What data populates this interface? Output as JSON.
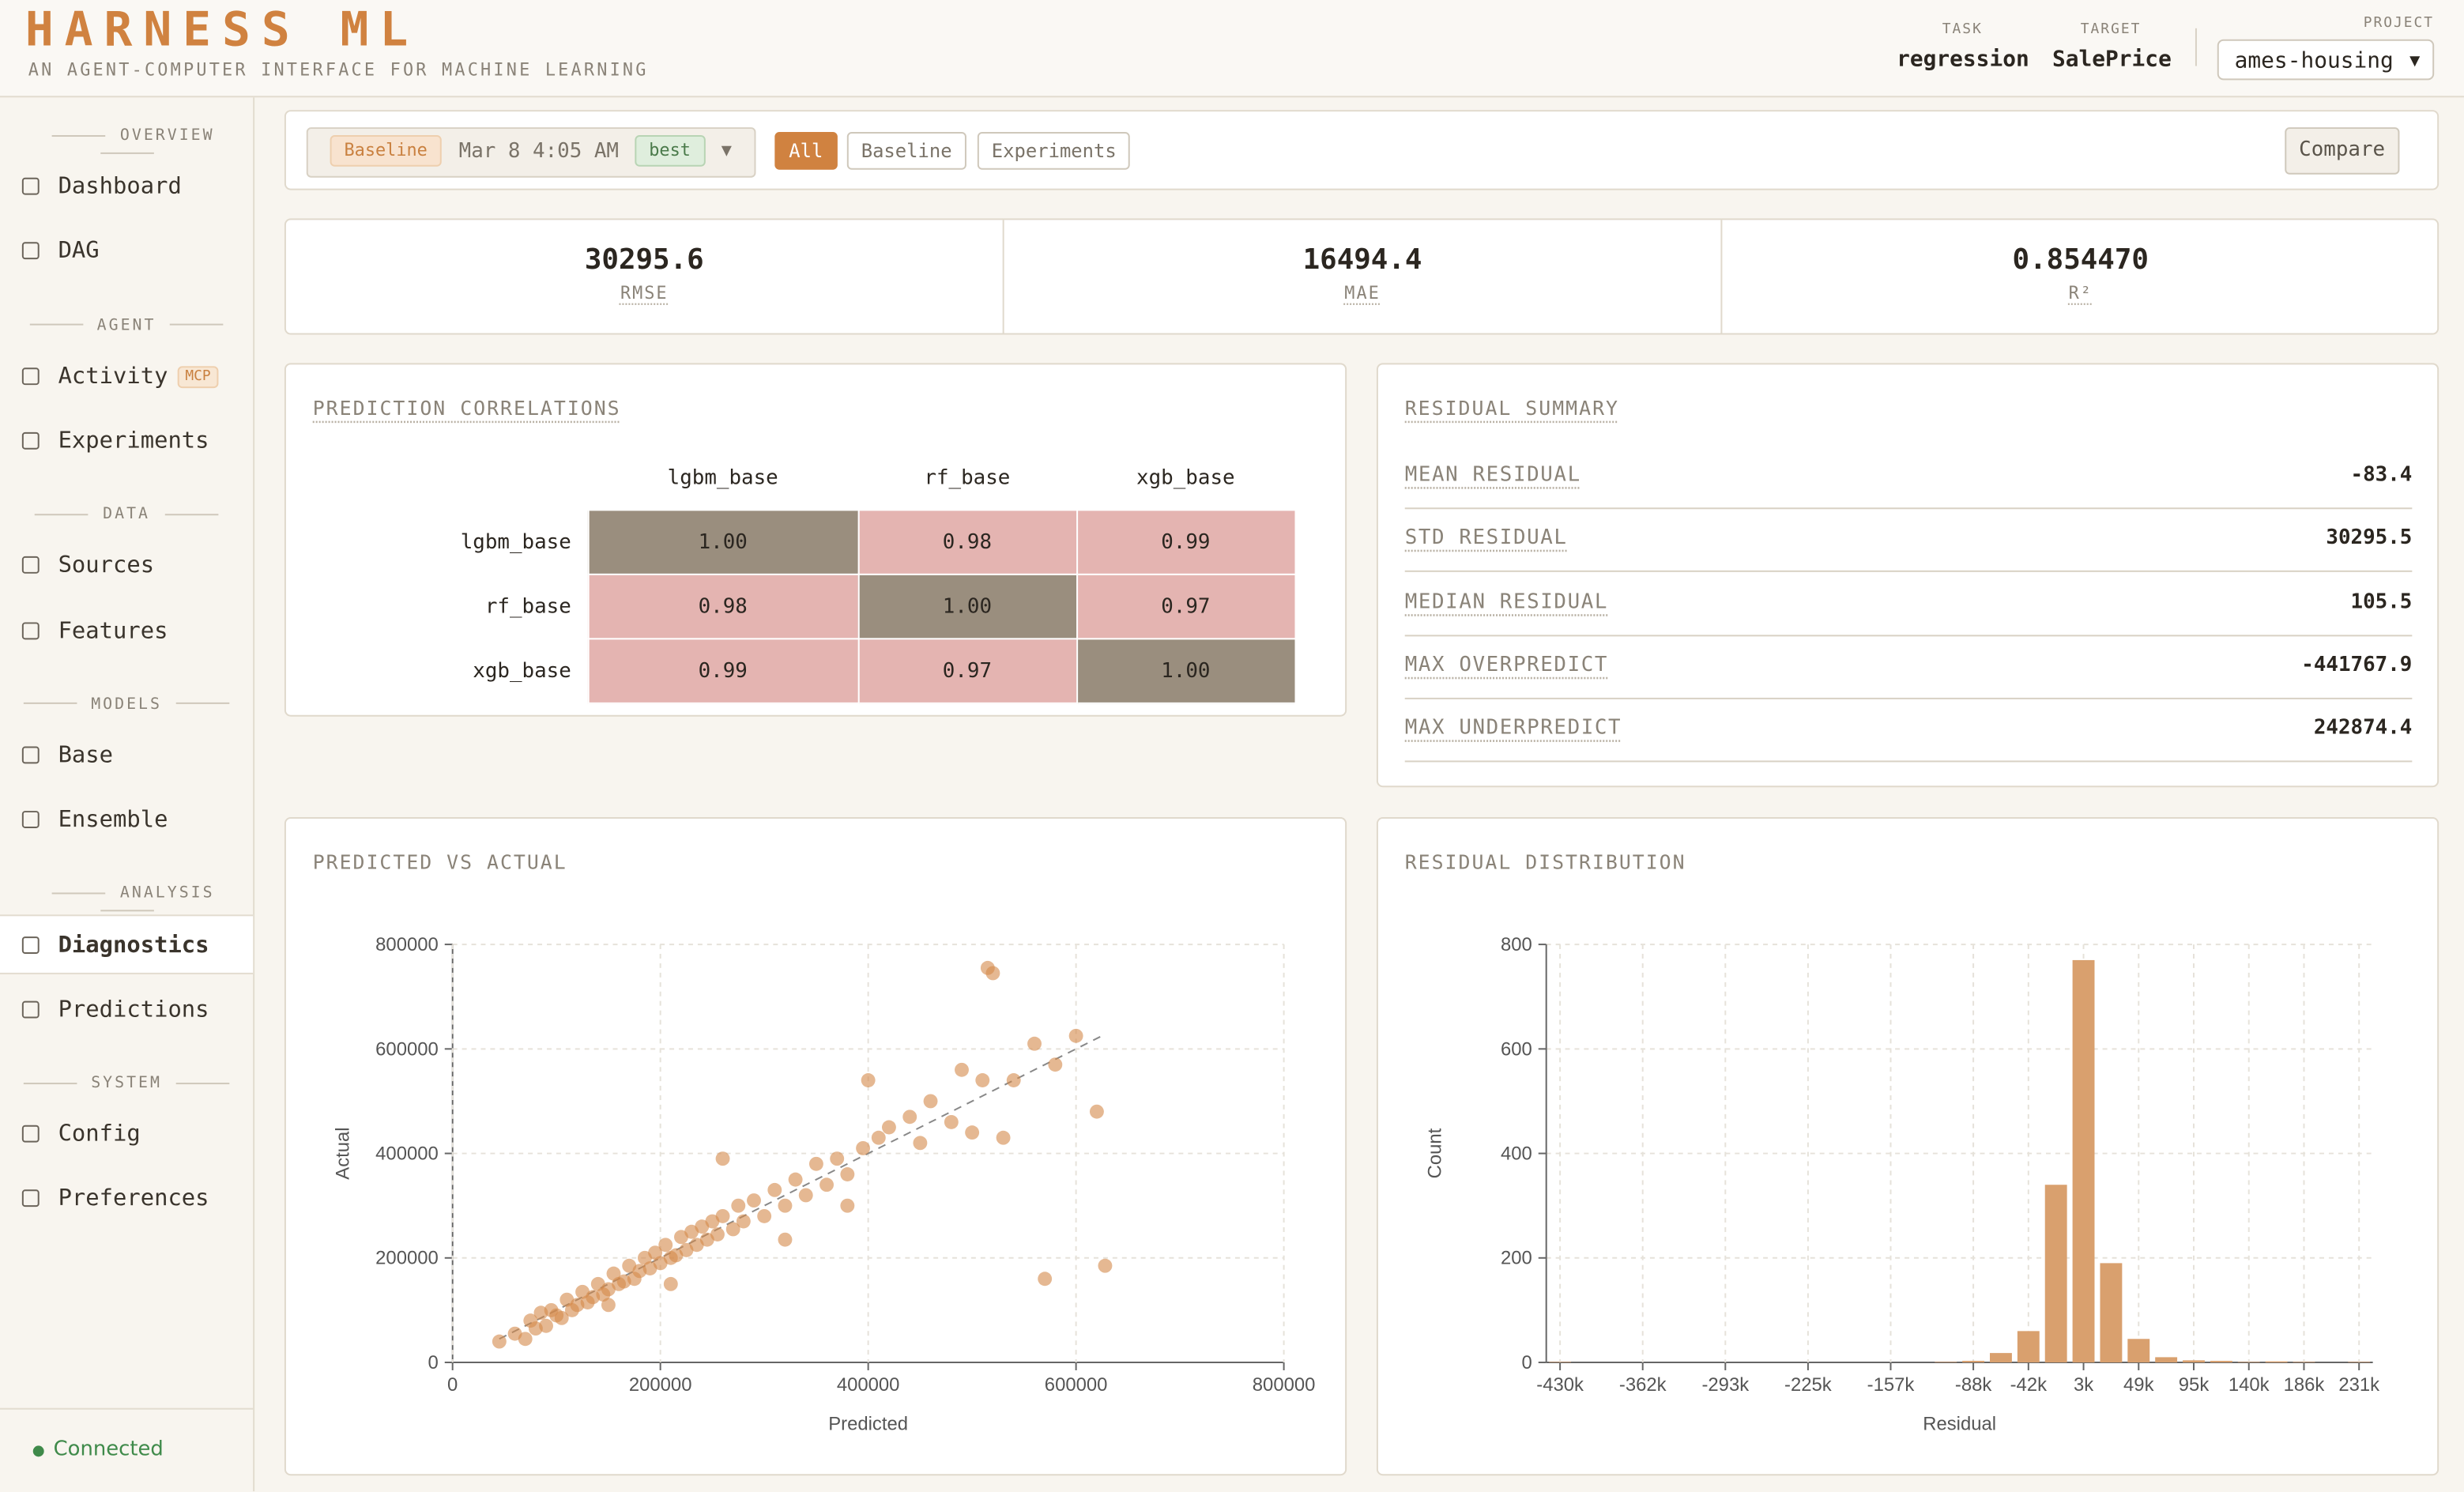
{
  "header": {
    "logo": "HARNESS ML",
    "tagline": "AN AGENT-COMPUTER INTERFACE FOR MACHINE LEARNING",
    "task_label": "TASK",
    "task": "regression",
    "target_label": "TARGET",
    "target": "SalePrice",
    "project_label": "PROJECT",
    "project": "ames-housing"
  },
  "sidebar": {
    "sections": [
      {
        "title": "OVERVIEW",
        "items": [
          {
            "label": "Dashboard"
          },
          {
            "label": "DAG"
          }
        ]
      },
      {
        "title": "AGENT",
        "items": [
          {
            "label": "Activity",
            "badge": "MCP"
          },
          {
            "label": "Experiments"
          }
        ]
      },
      {
        "title": "DATA",
        "items": [
          {
            "label": "Sources"
          },
          {
            "label": "Features"
          }
        ]
      },
      {
        "title": "MODELS",
        "items": [
          {
            "label": "Base"
          },
          {
            "label": "Ensemble"
          }
        ]
      },
      {
        "title": "ANALYSIS",
        "items": [
          {
            "label": "Diagnostics"
          },
          {
            "label": "Predictions"
          }
        ]
      },
      {
        "title": "SYSTEM",
        "items": [
          {
            "label": "Config"
          },
          {
            "label": "Preferences"
          }
        ]
      }
    ],
    "status": "Connected"
  },
  "toolbar": {
    "run_tag": "Baseline",
    "run_date": "Mar 8 4:05 AM",
    "run_badge": "best",
    "filters": [
      "All",
      "Baseline",
      "Experiments"
    ],
    "compare": "Compare"
  },
  "metrics": [
    {
      "value": "30295.6",
      "label": "RMSE"
    },
    {
      "value": "16494.4",
      "label": "MAE"
    },
    {
      "value": "0.854470",
      "label": "R²"
    }
  ],
  "correlations": {
    "title": "PREDICTION CORRELATIONS",
    "labels": [
      "lgbm_base",
      "rf_base",
      "xgb_base"
    ],
    "matrix": [
      [
        "1.00",
        "0.98",
        "0.99"
      ],
      [
        "0.98",
        "1.00",
        "0.97"
      ],
      [
        "0.99",
        "0.97",
        "1.00"
      ]
    ]
  },
  "residual_summary": {
    "title": "RESIDUAL SUMMARY",
    "rows": [
      {
        "label": "MEAN RESIDUAL",
        "value": "-83.4"
      },
      {
        "label": "STD RESIDUAL",
        "value": "30295.5"
      },
      {
        "label": "MEDIAN RESIDUAL",
        "value": "105.5"
      },
      {
        "label": "MAX OVERPREDICT",
        "value": "-441767.9"
      },
      {
        "label": "MAX UNDERPREDICT",
        "value": "242874.4"
      }
    ]
  },
  "chart_data": [
    {
      "type": "scatter",
      "title": "PREDICTED VS ACTUAL",
      "x_label": "Predicted",
      "y_label": "Actual",
      "color": "#d4894a",
      "xlim": [
        0,
        800000
      ],
      "ylim": [
        0,
        800000
      ],
      "xticks": [
        0,
        200000,
        400000,
        600000,
        800000
      ],
      "yticks": [
        0,
        200000,
        400000,
        600000,
        800000
      ],
      "grid": true,
      "reference_line": {
        "x": [
          45000,
          625000
        ],
        "y": [
          45000,
          625000
        ]
      },
      "x": [
        45000,
        60000,
        70000,
        75000,
        80000,
        85000,
        90000,
        95000,
        100000,
        105000,
        110000,
        115000,
        120000,
        125000,
        130000,
        135000,
        140000,
        145000,
        150000,
        155000,
        160000,
        165000,
        170000,
        175000,
        180000,
        185000,
        190000,
        195000,
        200000,
        205000,
        210000,
        215000,
        220000,
        225000,
        230000,
        235000,
        240000,
        245000,
        250000,
        255000,
        260000,
        270000,
        275000,
        280000,
        290000,
        300000,
        310000,
        320000,
        330000,
        340000,
        350000,
        360000,
        370000,
        380000,
        395000,
        400000,
        410000,
        420000,
        440000,
        450000,
        460000,
        480000,
        490000,
        500000,
        510000,
        515000,
        520000,
        530000,
        540000,
        560000,
        570000,
        580000,
        600000,
        620000,
        628000,
        260000,
        210000,
        380000,
        320000,
        150000
      ],
      "values": [
        40000,
        55000,
        45000,
        80000,
        65000,
        95000,
        70000,
        100000,
        90000,
        85000,
        120000,
        100000,
        110000,
        135000,
        115000,
        125000,
        150000,
        130000,
        140000,
        170000,
        150000,
        155000,
        185000,
        160000,
        175000,
        200000,
        180000,
        210000,
        190000,
        225000,
        200000,
        205000,
        240000,
        215000,
        250000,
        225000,
        260000,
        235000,
        270000,
        245000,
        280000,
        255000,
        300000,
        270000,
        310000,
        280000,
        330000,
        300000,
        350000,
        320000,
        380000,
        340000,
        390000,
        360000,
        410000,
        540000,
        430000,
        450000,
        470000,
        420000,
        500000,
        460000,
        560000,
        440000,
        540000,
        755000,
        745000,
        430000,
        540000,
        610000,
        160000,
        570000,
        625000,
        480000,
        185000,
        390000,
        150000,
        300000,
        235000,
        110000
      ]
    },
    {
      "type": "bar",
      "title": "RESIDUAL DISTRIBUTION",
      "x_label": "Residual",
      "y_label": "Count",
      "color": "#d9a06e",
      "ylim": [
        0,
        800
      ],
      "yticks": [
        0,
        200,
        400,
        600,
        800
      ],
      "grid": true,
      "categories": [
        "-430k",
        null,
        null,
        "-362k",
        null,
        null,
        "-293k",
        null,
        null,
        "-225k",
        null,
        null,
        "-157k",
        null,
        null,
        "-88k",
        null,
        "-42k",
        null,
        "3k",
        null,
        "49k",
        null,
        "95k",
        null,
        "140k",
        null,
        "186k",
        null,
        "231k"
      ],
      "values": [
        1,
        0,
        0,
        0,
        0,
        0,
        0,
        0,
        0,
        0,
        0,
        0,
        0,
        0,
        1,
        3,
        18,
        60,
        340,
        770,
        190,
        45,
        10,
        4,
        3,
        1,
        2,
        1,
        0,
        1
      ]
    }
  ]
}
